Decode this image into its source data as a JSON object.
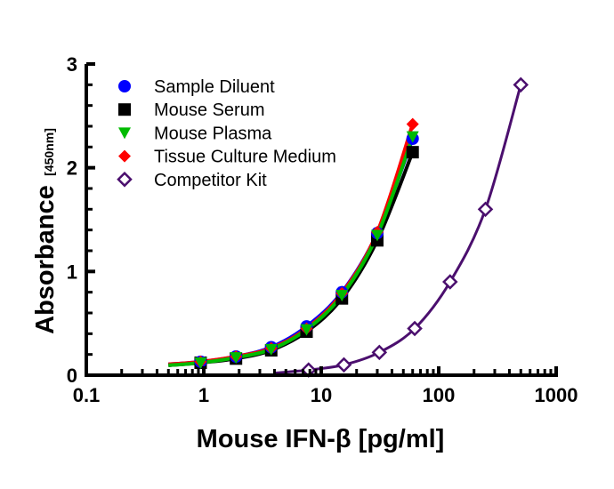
{
  "chart_data": {
    "type": "scatter",
    "title": "",
    "xlabel": "Mouse IFN-β [pg/ml]",
    "ylabel": "Absorbance",
    "ylabel_sub": "[450nm]",
    "xscale": "log",
    "xlim": [
      0.1,
      1000
    ],
    "ylim": [
      0,
      3
    ],
    "xticks": [
      "0.1",
      "1",
      "10",
      "100",
      "1000"
    ],
    "yticks": [
      "0",
      "1",
      "2",
      "3"
    ],
    "grid": false,
    "legend_position": "top-left",
    "fitted_curves": true,
    "series": [
      {
        "name": "Sample Diluent",
        "marker": "circle",
        "color": "#0000ff",
        "x": [
          0.94,
          1.88,
          3.75,
          7.5,
          15,
          30,
          60
        ],
        "y": [
          0.13,
          0.18,
          0.27,
          0.47,
          0.8,
          1.37,
          2.28
        ]
      },
      {
        "name": "Mouse Serum",
        "marker": "square",
        "color": "#000000",
        "x": [
          0.94,
          1.88,
          3.75,
          7.5,
          15,
          30,
          60
        ],
        "y": [
          0.12,
          0.16,
          0.24,
          0.42,
          0.74,
          1.3,
          2.15
        ]
      },
      {
        "name": "Mouse Plasma",
        "marker": "triangle-down",
        "color": "#00bb00",
        "x": [
          0.94,
          1.88,
          3.75,
          7.5,
          15,
          30,
          60
        ],
        "y": [
          0.12,
          0.17,
          0.25,
          0.44,
          0.77,
          1.35,
          2.3
        ]
      },
      {
        "name": "Tissue Culture Medium",
        "marker": "diamond",
        "color": "#ff0000",
        "x": [
          0.94,
          1.88,
          3.75,
          7.5,
          15,
          30,
          60
        ],
        "y": [
          0.13,
          0.18,
          0.26,
          0.45,
          0.79,
          1.38,
          2.42
        ]
      },
      {
        "name": "Competitor Kit",
        "marker": "open-diamond",
        "color": "#4b0f6e",
        "x": [
          7.8,
          15.6,
          31.25,
          62.5,
          125,
          250,
          500
        ],
        "y": [
          0.05,
          0.1,
          0.22,
          0.45,
          0.9,
          1.6,
          2.8
        ]
      }
    ]
  }
}
